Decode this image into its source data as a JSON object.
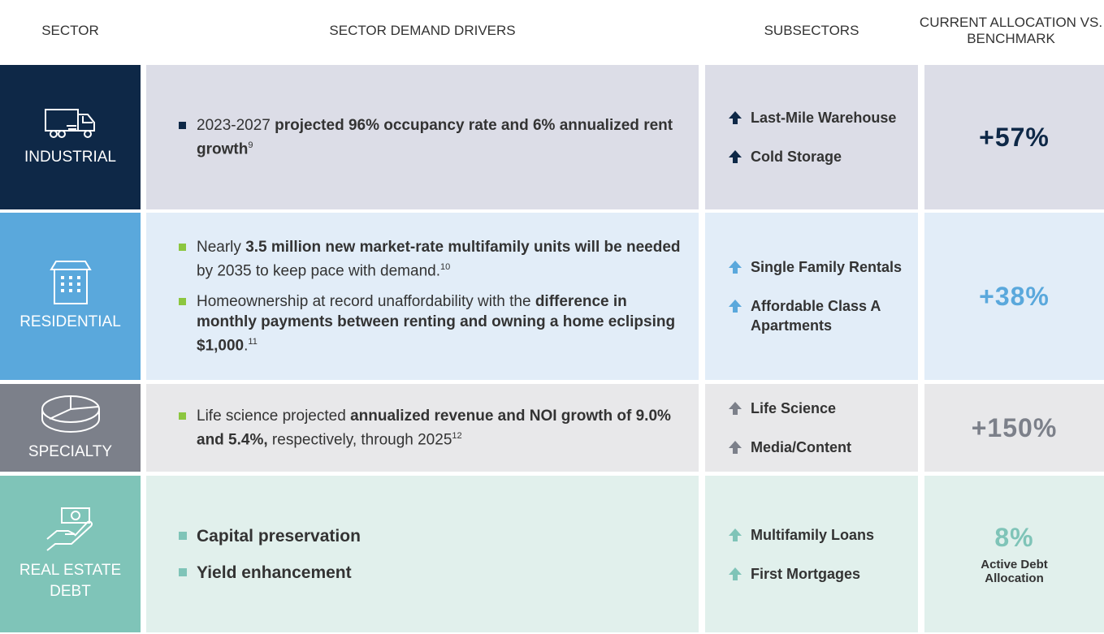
{
  "header": [
    "SECTOR",
    "SECTOR DEMAND DRIVERS",
    "SUBSECTORS",
    "CURRENT ALLOCATION VS. BENCHMARK"
  ],
  "rows": [
    {
      "sector": "INDUSTRIAL",
      "drivers": [
        [
          {
            "text": "2023-2027 "
          },
          {
            "text": "projected 96% occupancy rate and 6% annualized rent growth",
            "bold": true
          },
          {
            "text": "9",
            "sup": true
          }
        ]
      ],
      "subsectors": [
        "Last-Mile Warehouse",
        "Cold Storage"
      ],
      "allocation": "+57%"
    },
    {
      "sector": "RESIDENTIAL",
      "drivers": [
        [
          {
            "text": "Nearly "
          },
          {
            "text": "3.5 million new market-rate multifamily units will be needed",
            "bold": true
          },
          {
            "text": " by 2035 to keep pace with demand."
          },
          {
            "text": "10",
            "sup": true
          }
        ],
        [
          {
            "text": "Homeownership at record unaffordability with the "
          },
          {
            "text": "difference in monthly payments between renting and owning a home eclipsing $1,000",
            "bold": true
          },
          {
            "text": "."
          },
          {
            "text": "11",
            "sup": true
          }
        ]
      ],
      "subsectors": [
        "Single Family Rentals",
        "Affordable Class A Apartments"
      ],
      "allocation": "+38%"
    },
    {
      "sector": "SPECIALTY",
      "drivers": [
        [
          {
            "text": "Life science projected "
          },
          {
            "text": "annualized revenue and NOI growth of 9.0% and 5.4%,",
            "bold": true
          },
          {
            "text": " respectively, through 2025"
          },
          {
            "text": "12",
            "sup": true
          }
        ]
      ],
      "subsectors": [
        "Life Science",
        "Media/Content"
      ],
      "allocation": "+150%"
    },
    {
      "sector": "REAL ESTATE DEBT",
      "drivers": [
        [
          {
            "text": "Capital preservation",
            "bold": true
          }
        ],
        [
          {
            "text": "Yield enhancement",
            "bold": true
          }
        ]
      ],
      "subsectors": [
        "Multifamily Loans",
        "First Mortgages"
      ],
      "allocation": "8%",
      "allocation_note": "Active Debt Allocation"
    }
  ]
}
